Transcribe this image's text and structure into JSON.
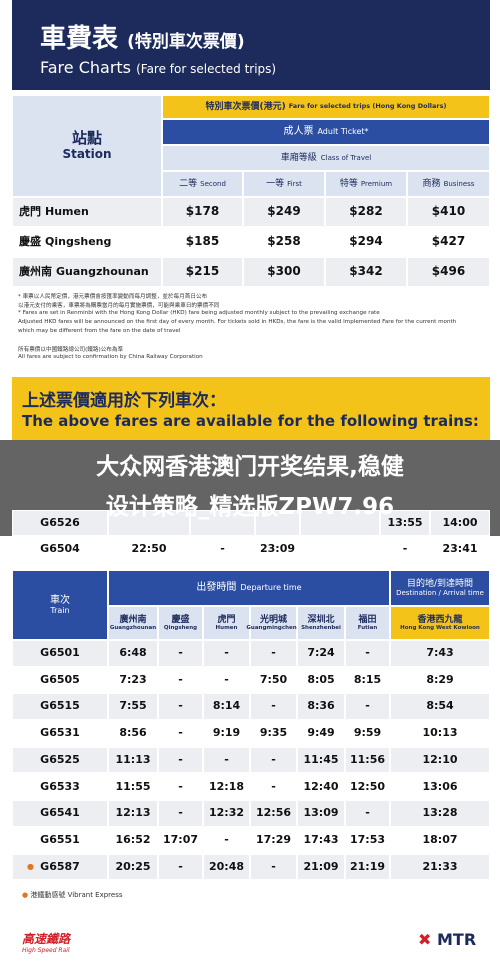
{
  "header": {
    "title_zh": "車費表",
    "title_zh_sub": "(特別車次票價)",
    "title_en": "Fare Charts",
    "title_en_sub": "(Fare for selected trips)"
  },
  "fare_table": {
    "station_header": [
      "站點",
      "Station"
    ],
    "fare_header": [
      "特別車次票價(港元)",
      "Fare for selected trips (Hong Kong Dollars)"
    ],
    "ticket_header": [
      "成人票",
      "Adult Ticket*"
    ],
    "class_header": [
      "車廂等級",
      "Class of Travel"
    ],
    "classes": [
      [
        "二等",
        "Second"
      ],
      [
        "一等",
        "First"
      ],
      [
        "特等",
        "Premium"
      ],
      [
        "商務",
        "Business"
      ]
    ],
    "rows": [
      {
        "station": [
          "虎門",
          "Humen"
        ],
        "fares": [
          "$178",
          "$249",
          "$282",
          "$410"
        ]
      },
      {
        "station": [
          "慶盛",
          "Qingsheng"
        ],
        "fares": [
          "$185",
          "$258",
          "$294",
          "$427"
        ]
      },
      {
        "station": [
          "廣州南",
          "Guangzhounan"
        ],
        "fares": [
          "$215",
          "$300",
          "$342",
          "$496"
        ]
      }
    ]
  },
  "notes": [
    "* 車票以人民幣定價，港元票價會按匯率變動而每月調整，並於每月首日公布",
    "以港元支付的乘客，車票將為購票當月的每月實施票價，可能與乘車日的票價不同",
    "* Fares are set in Renminbi with the Hong Kong Dollar (HKD) fare being adjusted monthly subject to the prevailing exchange rate",
    "Adjusted HKD fares will be announced on the first day of every month. For tickets sold in HKDs, the fare is the valid Implemented Fare for the current month",
    "which may be different from the fare on the date of travel",
    "所有票價以中國鐵路總公司(鐵路)公布為準",
    "All fares are subject to confirmation by China Railway Corporation"
  ],
  "section2": {
    "title_zh": "上述票價適用於下列車次：",
    "title_en": "The above fares are available for the following trains:",
    "rows": [
      {
        "train": "G6526",
        "cells": [
          "13:55",
          "14:00"
        ]
      },
      {
        "train": "G6504",
        "cells": [
          "22:50",
          "-",
          "23:09",
          "-",
          "23:41"
        ]
      }
    ]
  },
  "overlay": {
    "lines": [
      "大众网香港澳门开奖结果,稳健",
      "设计策略_精选版ZPW7.96"
    ]
  },
  "timetable": {
    "train_header": [
      "車次",
      "Train"
    ],
    "departure_header": [
      "出發時間",
      "Departure time"
    ],
    "destination_header": [
      "目的地/到達時間",
      "Destination / Arrival time"
    ],
    "stations": [
      [
        "廣州南",
        "Guangzhounan"
      ],
      [
        "慶盛",
        "Qingsheng"
      ],
      [
        "虎門",
        "Humen"
      ],
      [
        "光明城",
        "Guangmingcheng"
      ],
      [
        "深圳北",
        "Shenzhenbei"
      ],
      [
        "福田",
        "Futian"
      ],
      [
        "香港西九龍",
        "Hong Kong West Kowloon"
      ]
    ],
    "rows": [
      {
        "train": "G6501",
        "times": [
          "6:48",
          "-",
          "-",
          "-",
          "7:24",
          "-",
          "7:43"
        ]
      },
      {
        "train": "G6505",
        "times": [
          "7:23",
          "-",
          "-",
          "7:50",
          "8:05",
          "8:15",
          "8:29"
        ]
      },
      {
        "train": "G6515",
        "times": [
          "7:55",
          "-",
          "8:14",
          "-",
          "8:36",
          "-",
          "8:54"
        ]
      },
      {
        "train": "G6531",
        "times": [
          "8:56",
          "-",
          "9:19",
          "9:35",
          "9:49",
          "9:59",
          "10:13"
        ]
      },
      {
        "train": "G6525",
        "times": [
          "11:13",
          "-",
          "-",
          "-",
          "11:45",
          "11:56",
          "12:10"
        ]
      },
      {
        "train": "G6533",
        "times": [
          "11:55",
          "-",
          "12:18",
          "-",
          "12:40",
          "12:50",
          "13:06"
        ]
      },
      {
        "train": "G6541",
        "times": [
          "12:13",
          "-",
          "12:32",
          "12:56",
          "13:09",
          "-",
          "13:28"
        ]
      },
      {
        "train": "G6551",
        "times": [
          "16:52",
          "17:07",
          "-",
          "17:29",
          "17:43",
          "17:53",
          "18:07"
        ]
      },
      {
        "train": "G6587",
        "times": [
          "20:25",
          "-",
          "20:48",
          "-",
          "21:09",
          "21:19",
          "21:33"
        ]
      }
    ]
  },
  "footer": {
    "legend": "港鐵動感號 Vibrant Express",
    "logo_left": [
      "高速鐵路",
      "High Speed Rail"
    ],
    "logo_right": "MTR"
  }
}
